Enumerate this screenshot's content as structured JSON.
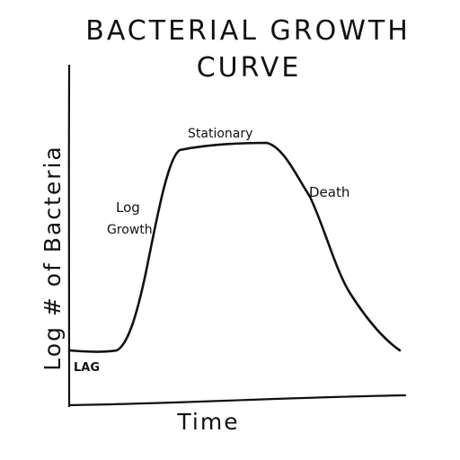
{
  "title": {
    "line1": "BACTERIAL GROWTH",
    "line2": "CURVE"
  },
  "axes": {
    "x_label": "Time",
    "y_label": "Log # of Bacteria"
  },
  "phases": {
    "lag": "LAG",
    "log_line1": "Log",
    "log_line2": "Growth",
    "stationary": "Stationary",
    "death": "Death"
  },
  "colors": {
    "ink": "#111111",
    "paper": "#ffffff"
  }
}
